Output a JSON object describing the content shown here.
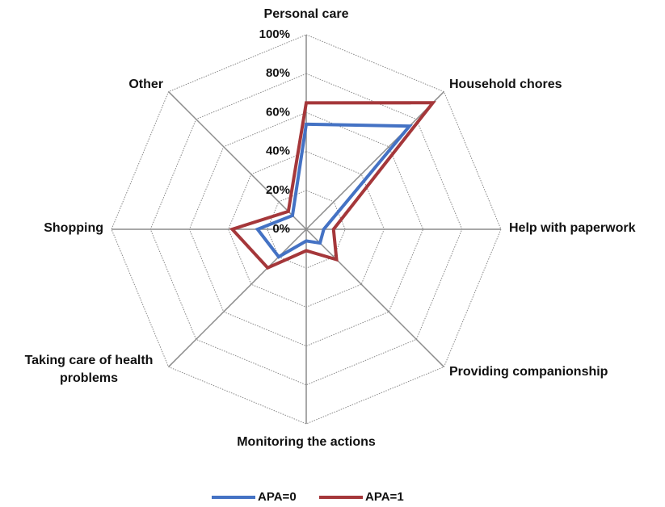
{
  "chart_data": {
    "type": "radar",
    "categories": [
      "Personal care",
      "Household chores",
      "Help with paperwork",
      "Providing companionship",
      "Monitoring the actions",
      "Taking care of health problems",
      "Shopping",
      "Other"
    ],
    "series": [
      {
        "name": "APA=0",
        "color": "#4472c4",
        "values": [
          54,
          75,
          9,
          10,
          6,
          20,
          25,
          10
        ]
      },
      {
        "name": "APA=1",
        "color": "#a5373a",
        "values": [
          65,
          92,
          14,
          22,
          11,
          28,
          38,
          13
        ]
      }
    ],
    "ylim": [
      0,
      100
    ],
    "yticks": [
      {
        "value": 0,
        "label": "0%"
      },
      {
        "value": 20,
        "label": "20%"
      },
      {
        "value": 40,
        "label": "40%"
      },
      {
        "value": 60,
        "label": "60%"
      },
      {
        "value": 80,
        "label": "80%"
      },
      {
        "value": 100,
        "label": "100%"
      }
    ],
    "grid": true,
    "legend": "bottom"
  }
}
